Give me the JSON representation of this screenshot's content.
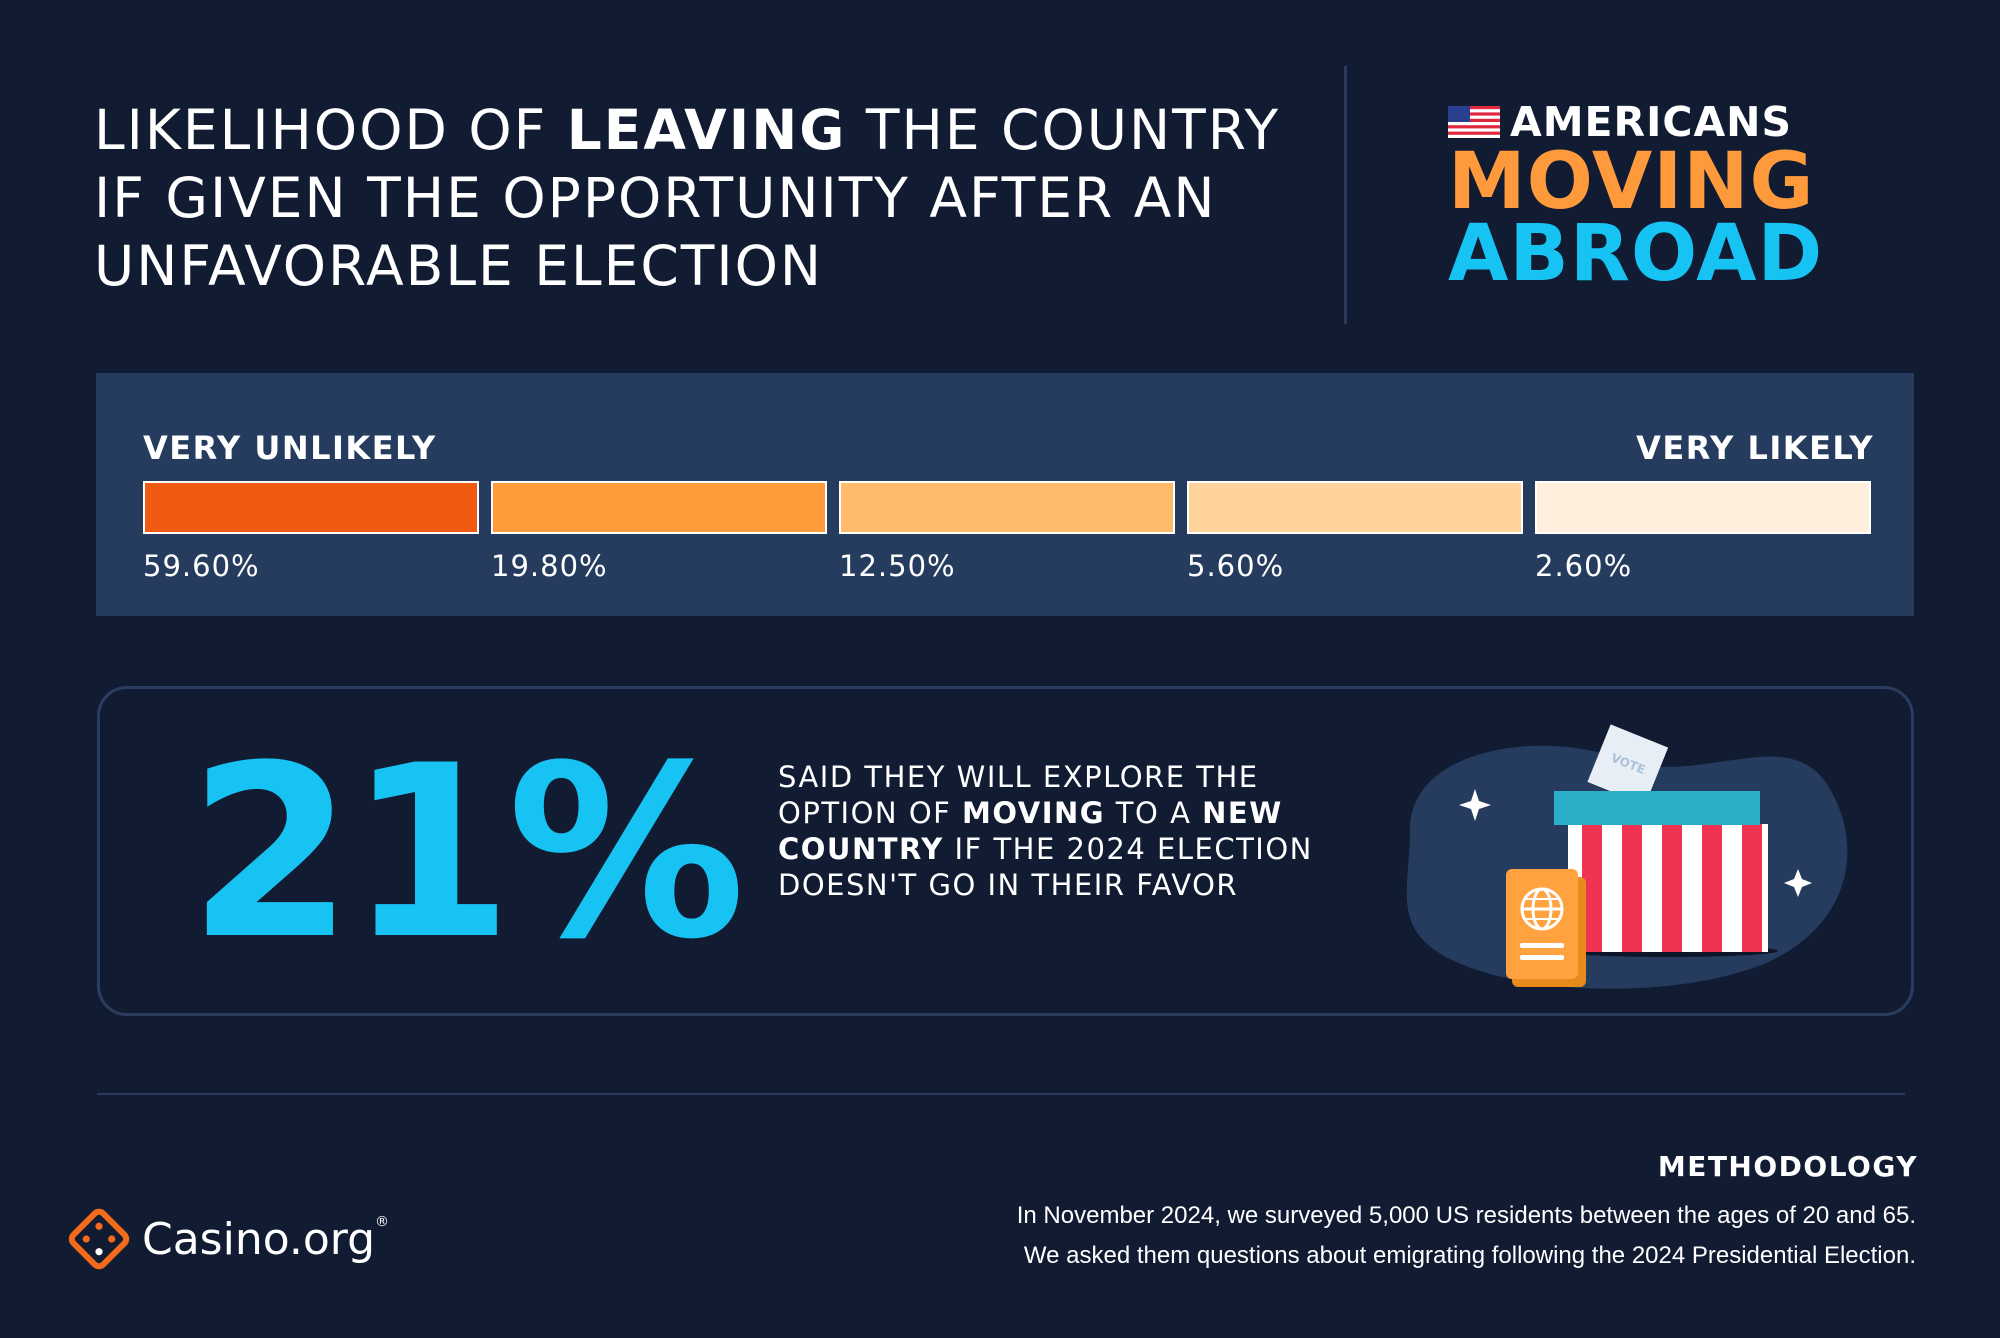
{
  "header": {
    "title_part1": "LIKELIHOOD OF ",
    "title_bold": "LEAVING",
    "title_part2": " THE COUNTRY IF GIVEN THE OPPORTUNITY AFTER AN UNFAVORABLE ELECTION"
  },
  "brand": {
    "line1": "AMERICANS",
    "line2": "MOVING",
    "line3": "ABROAD",
    "colors": {
      "moving": "#ff9a3c",
      "abroad": "#17c3f2"
    }
  },
  "chart_data": {
    "type": "bar",
    "scale_left_label": "VERY UNLIKELY",
    "scale_right_label": "VERY LIKELY",
    "values": [
      59.6,
      19.8,
      12.5,
      5.6,
      2.6
    ],
    "value_labels": [
      "59.60%",
      "19.80%",
      "12.50%",
      "5.60%",
      "2.60%"
    ],
    "colors": [
      "#f15a12",
      "#ff9b3b",
      "#ffba6a",
      "#ffd399",
      "#ffefdc"
    ]
  },
  "stat": {
    "value": "21%",
    "desc_1": "SAID THEY WILL EXPLORE THE OPTION OF ",
    "desc_bold_1": "MOVING",
    "desc_2": " TO A ",
    "desc_bold_2": "NEW COUNTRY",
    "desc_3": " IF THE 2024 ELECTION DOESN'T GO IN THEIR FAVOR",
    "ballot_text": "VOTE"
  },
  "footer": {
    "logo_text": "Casino.org",
    "logo_mark": "®",
    "methodology_title": "METHODOLOGY",
    "methodology_line1": "In November 2024, we surveyed 5,000 US residents between the ages of 20 and 65.",
    "methodology_line2": "We asked them questions about emigrating following the 2024 Presidential Election."
  }
}
